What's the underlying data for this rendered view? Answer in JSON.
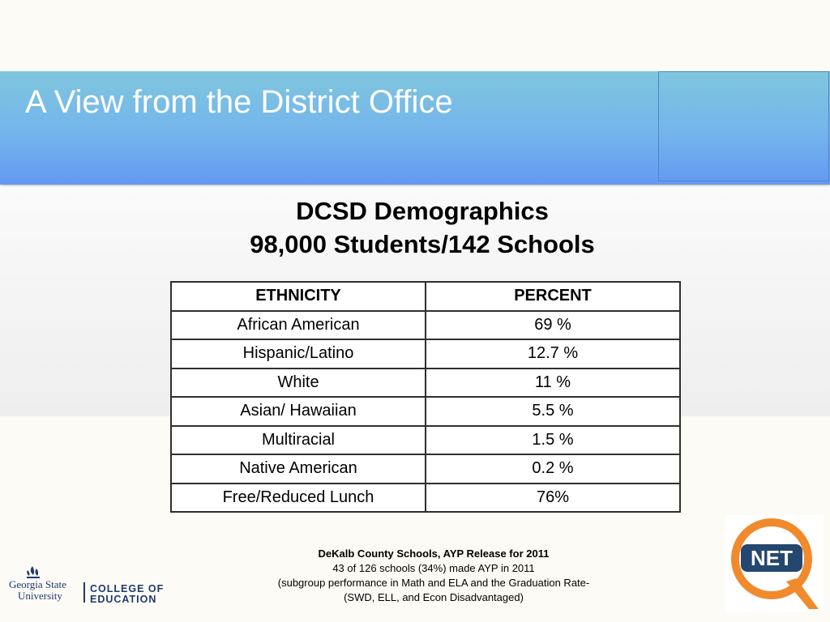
{
  "slide": {
    "title": "A View from the District Office",
    "heading_line1": "DCSD Demographics",
    "heading_line2": "98,000 Students/142 Schools"
  },
  "table": {
    "headers": [
      "ETHNICITY",
      "PERCENT"
    ],
    "rows": [
      {
        "group": "African American",
        "percent": "69 %"
      },
      {
        "group": "Hispanic/Latino",
        "percent": "12.7 %"
      },
      {
        "group": "White",
        "percent": "11 %"
      },
      {
        "group": "Asian/ Hawaiian",
        "percent": "5.5  %"
      },
      {
        "group": "Multiracial",
        "percent": "1.5  %"
      },
      {
        "group": "Native American",
        "percent": "0.2  %"
      },
      {
        "group": "Free/Reduced Lunch",
        "percent": "76%"
      }
    ]
  },
  "footnote": {
    "line1": "DeKalb County Schools, AYP Release for 2011",
    "line2": "43 of 126 schools (34%) made AYP in 2011",
    "line3": "(subgroup performance in Math and ELA and the Graduation Rate-",
    "line4": "(SWD, ELL, and Econ Disadvantaged)"
  },
  "logos": {
    "gsu_text1": "Georgia State",
    "gsu_text2": "University",
    "gsu_college1": "COLLEGE OF",
    "gsu_college2": "EDUCATION",
    "net_text": "NET"
  },
  "colors": {
    "banner_top": "#7fc6de",
    "banner_bottom": "#6399f2",
    "logo_navy": "#1f3a6e",
    "logo_orange": "#f08a2c"
  }
}
